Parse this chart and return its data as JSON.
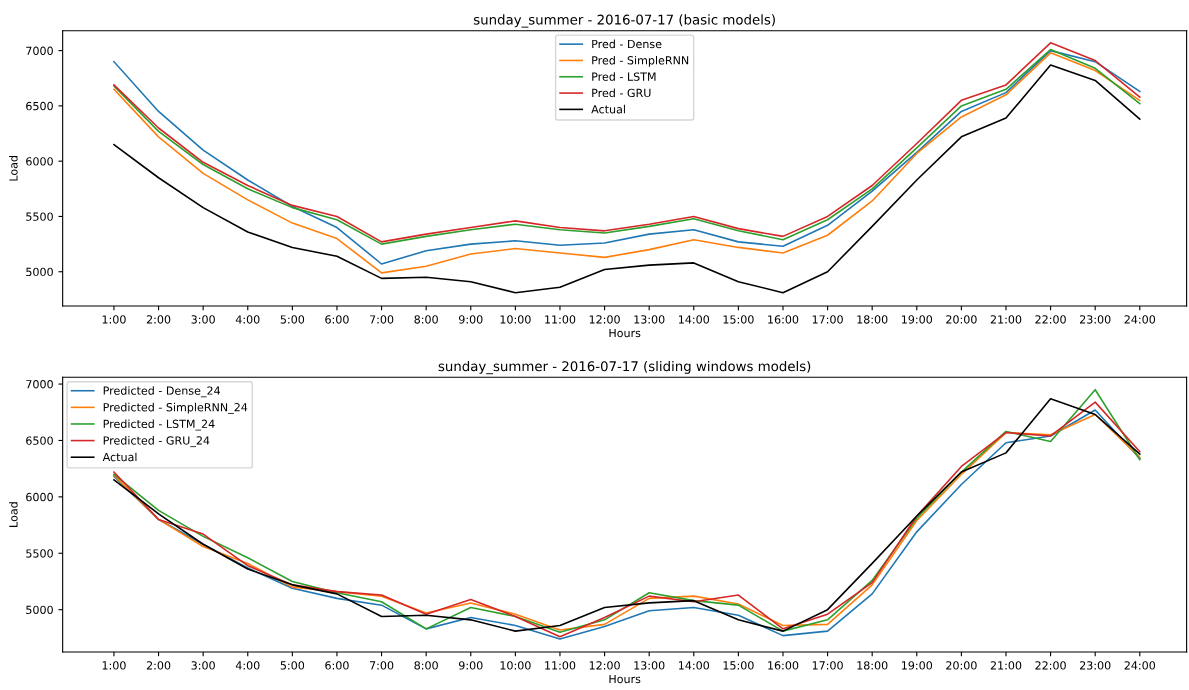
{
  "chart_data": [
    {
      "type": "line",
      "title": "sunday_summer - 2016-07-17 (basic models)",
      "xlabel": "Hours",
      "ylabel": "Load",
      "x": [
        1,
        2,
        3,
        4,
        5,
        6,
        7,
        8,
        9,
        10,
        11,
        12,
        13,
        14,
        15,
        16,
        17,
        18,
        19,
        20,
        21,
        22,
        23,
        24
      ],
      "xlim": [
        -0.15,
        25.05
      ],
      "xticks": [
        {
          "value": 1,
          "label": "1:00"
        },
        {
          "value": 2,
          "label": "2:00"
        },
        {
          "value": 3,
          "label": "3:00"
        },
        {
          "value": 4,
          "label": "4:00"
        },
        {
          "value": 5,
          "label": "5:00"
        },
        {
          "value": 6,
          "label": "6:00"
        },
        {
          "value": 7,
          "label": "7:00"
        },
        {
          "value": 8,
          "label": "8:00"
        },
        {
          "value": 9,
          "label": "9:00"
        },
        {
          "value": 10,
          "label": "10:00"
        },
        {
          "value": 11,
          "label": "11:00"
        },
        {
          "value": 12,
          "label": "12:00"
        },
        {
          "value": 13,
          "label": "13:00"
        },
        {
          "value": 14,
          "label": "14:00"
        },
        {
          "value": 15,
          "label": "15:00"
        },
        {
          "value": 16,
          "label": "16:00"
        },
        {
          "value": 17,
          "label": "17:00"
        },
        {
          "value": 18,
          "label": "18:00"
        },
        {
          "value": 19,
          "label": "19:00"
        },
        {
          "value": 20,
          "label": "20:00"
        },
        {
          "value": 21,
          "label": "21:00"
        },
        {
          "value": 22,
          "label": "22:00"
        },
        {
          "value": 23,
          "label": "23:00"
        },
        {
          "value": 24,
          "label": "24:00"
        }
      ],
      "ylim": [
        4690,
        7180
      ],
      "yticks": [
        5000,
        5500,
        6000,
        6500,
        7000
      ],
      "legend": "top",
      "series": [
        {
          "name": "Pred - Dense",
          "color": "#1f77b4",
          "values": [
            6900,
            6450,
            6100,
            5830,
            5590,
            5400,
            5070,
            5190,
            5250,
            5280,
            5240,
            5260,
            5340,
            5380,
            5270,
            5230,
            5420,
            5730,
            6080,
            6450,
            6620,
            7000,
            6900,
            6630
          ]
        },
        {
          "name": "Pred - SimpleRNN",
          "color": "#ff7f0e",
          "values": [
            6650,
            6220,
            5890,
            5650,
            5440,
            5300,
            4990,
            5050,
            5160,
            5210,
            5170,
            5130,
            5200,
            5290,
            5220,
            5170,
            5330,
            5640,
            6070,
            6400,
            6600,
            6980,
            6820,
            6550
          ]
        },
        {
          "name": "Pred - LSTM",
          "color": "#2ca02c",
          "values": [
            6680,
            6270,
            5970,
            5750,
            5580,
            5470,
            5250,
            5320,
            5380,
            5430,
            5380,
            5350,
            5410,
            5480,
            5370,
            5290,
            5470,
            5750,
            6120,
            6500,
            6650,
            7010,
            6840,
            6520
          ]
        },
        {
          "name": "Pred - GRU",
          "color": "#d62728",
          "values": [
            6690,
            6300,
            5990,
            5780,
            5600,
            5500,
            5270,
            5340,
            5400,
            5460,
            5400,
            5370,
            5430,
            5500,
            5390,
            5320,
            5500,
            5780,
            6160,
            6550,
            6690,
            7070,
            6910,
            6580
          ]
        },
        {
          "name": "Actual",
          "color": "#000000",
          "values": [
            6150,
            5850,
            5580,
            5360,
            5220,
            5140,
            4940,
            4950,
            4910,
            4810,
            4860,
            5020,
            5060,
            5080,
            4910,
            4810,
            5000,
            5410,
            5830,
            6220,
            6390,
            6870,
            6730,
            6380
          ]
        }
      ]
    },
    {
      "type": "line",
      "title": "sunday_summer - 2016-07-17 (sliding windows models)",
      "xlabel": "Hours",
      "ylabel": "Load",
      "x": [
        1,
        2,
        3,
        4,
        5,
        6,
        7,
        8,
        9,
        10,
        11,
        12,
        13,
        14,
        15,
        16,
        17,
        18,
        19,
        20,
        21,
        22,
        23,
        24
      ],
      "xlim": [
        -0.15,
        25.05
      ],
      "xticks": [
        {
          "value": 1,
          "label": "1:00"
        },
        {
          "value": 2,
          "label": "2:00"
        },
        {
          "value": 3,
          "label": "3:00"
        },
        {
          "value": 4,
          "label": "4:00"
        },
        {
          "value": 5,
          "label": "5:00"
        },
        {
          "value": 6,
          "label": "6:00"
        },
        {
          "value": 7,
          "label": "7:00"
        },
        {
          "value": 8,
          "label": "8:00"
        },
        {
          "value": 9,
          "label": "9:00"
        },
        {
          "value": 10,
          "label": "10:00"
        },
        {
          "value": 11,
          "label": "11:00"
        },
        {
          "value": 12,
          "label": "12:00"
        },
        {
          "value": 13,
          "label": "13:00"
        },
        {
          "value": 14,
          "label": "14:00"
        },
        {
          "value": 15,
          "label": "15:00"
        },
        {
          "value": 16,
          "label": "16:00"
        },
        {
          "value": 17,
          "label": "17:00"
        },
        {
          "value": 18,
          "label": "18:00"
        },
        {
          "value": 19,
          "label": "19:00"
        },
        {
          "value": 20,
          "label": "20:00"
        },
        {
          "value": 21,
          "label": "21:00"
        },
        {
          "value": 22,
          "label": "22:00"
        },
        {
          "value": 23,
          "label": "23:00"
        },
        {
          "value": 24,
          "label": "24:00"
        }
      ],
      "ylim": [
        4625,
        7060
      ],
      "yticks": [
        5000,
        5500,
        6000,
        6500,
        7000
      ],
      "legend": "top left",
      "series": [
        {
          "name": "Predicted - Dense_24",
          "color": "#1f77b4",
          "values": [
            6180,
            5800,
            5580,
            5370,
            5190,
            5100,
            5040,
            4830,
            4930,
            4860,
            4740,
            4850,
            4990,
            5020,
            4950,
            4770,
            4810,
            5140,
            5690,
            6110,
            6480,
            6540,
            6770,
            6340
          ]
        },
        {
          "name": "Predicted - SimpleRNN_24",
          "color": "#ff7f0e",
          "values": [
            6190,
            5800,
            5560,
            5410,
            5200,
            5160,
            5120,
            4970,
            5060,
            4960,
            4820,
            4870,
            5100,
            5120,
            5050,
            4860,
            4870,
            5220,
            5790,
            6200,
            6570,
            6550,
            6730,
            6350
          ]
        },
        {
          "name": "Predicted - LSTM_24",
          "color": "#2ca02c",
          "values": [
            6200,
            5880,
            5650,
            5460,
            5250,
            5150,
            5070,
            4830,
            5020,
            4940,
            4800,
            4910,
            5150,
            5080,
            5040,
            4810,
            4910,
            5260,
            5810,
            6220,
            6580,
            6490,
            6950,
            6330
          ]
        },
        {
          "name": "Predicted - GRU_24",
          "color": "#d62728",
          "values": [
            6220,
            5800,
            5670,
            5390,
            5220,
            5160,
            5130,
            4960,
            5090,
            4940,
            4760,
            4930,
            5120,
            5070,
            5130,
            4830,
            4960,
            5240,
            5830,
            6270,
            6570,
            6540,
            6840,
            6400
          ]
        },
        {
          "name": "Actual",
          "color": "#000000",
          "values": [
            6150,
            5850,
            5580,
            5360,
            5220,
            5140,
            4940,
            4950,
            4910,
            4810,
            4860,
            5020,
            5060,
            5080,
            4910,
            4810,
            5000,
            5410,
            5830,
            6220,
            6390,
            6870,
            6730,
            6380
          ]
        }
      ]
    }
  ]
}
